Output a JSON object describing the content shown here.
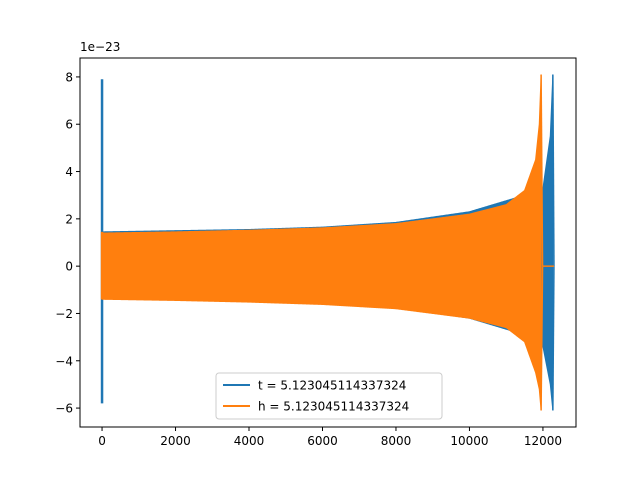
{
  "chart_data": {
    "type": "line",
    "title": "",
    "xlabel": "",
    "ylabel": "",
    "y_offset_label": "1e−23",
    "xlim": [
      -600,
      12900
    ],
    "ylim": [
      -6.8,
      8.8
    ],
    "x_ticks": [
      0,
      2000,
      4000,
      6000,
      8000,
      10000,
      12000
    ],
    "x_tick_labels": [
      "0",
      "2000",
      "4000",
      "6000",
      "8000",
      "10000",
      "12000"
    ],
    "y_ticks": [
      -6,
      -4,
      -2,
      0,
      2,
      4,
      6,
      8
    ],
    "y_tick_labels": [
      "−6",
      "−4",
      "−2",
      "0",
      "2",
      "4",
      "6",
      "8"
    ],
    "grid": false,
    "legend_position": "lower-center",
    "series": [
      {
        "name": "t = 5.123045114337324",
        "color": "#1f77b4",
        "start_spike": {
          "x": 0,
          "ymin": -5.8,
          "ymax": 7.9
        },
        "envelope": [
          {
            "x": 0,
            "upper": 1.45,
            "lower": -1.35
          },
          {
            "x": 2000,
            "upper": 1.5,
            "lower": -1.4
          },
          {
            "x": 4000,
            "upper": 1.55,
            "lower": -1.45
          },
          {
            "x": 6000,
            "upper": 1.65,
            "lower": -1.55
          },
          {
            "x": 8000,
            "upper": 1.85,
            "lower": -1.75
          },
          {
            "x": 10000,
            "upper": 2.3,
            "lower": -2.2
          },
          {
            "x": 11500,
            "upper": 3.0,
            "lower": -2.9
          },
          {
            "x": 12000,
            "upper": 3.3,
            "lower": -3.4
          },
          {
            "x": 12200,
            "upper": 5.5,
            "lower": -5.0
          },
          {
            "x": 12270,
            "upper": 8.1,
            "lower": -6.1
          }
        ],
        "end_x": 12300
      },
      {
        "name": "h = 5.123045114337324",
        "color": "#ff7f0e",
        "start_spike": {
          "x": 0,
          "ymin": -1.4,
          "ymax": 1.45
        },
        "envelope": [
          {
            "x": 0,
            "upper": 1.4,
            "lower": -1.4
          },
          {
            "x": 2000,
            "upper": 1.45,
            "lower": -1.45
          },
          {
            "x": 4000,
            "upper": 1.52,
            "lower": -1.52
          },
          {
            "x": 6000,
            "upper": 1.62,
            "lower": -1.62
          },
          {
            "x": 8000,
            "upper": 1.8,
            "lower": -1.8
          },
          {
            "x": 10000,
            "upper": 2.2,
            "lower": -2.2
          },
          {
            "x": 11000,
            "upper": 2.6,
            "lower": -2.6
          },
          {
            "x": 11500,
            "upper": 3.2,
            "lower": -3.2
          },
          {
            "x": 11800,
            "upper": 4.5,
            "lower": -4.5
          },
          {
            "x": 11900,
            "upper": 6.0,
            "lower": -5.2
          },
          {
            "x": 11950,
            "upper": 8.1,
            "lower": -6.1
          }
        ],
        "end_x": 11990,
        "tail": {
          "x_start": 12000,
          "x_end": 12300,
          "y": 0
        }
      }
    ]
  }
}
